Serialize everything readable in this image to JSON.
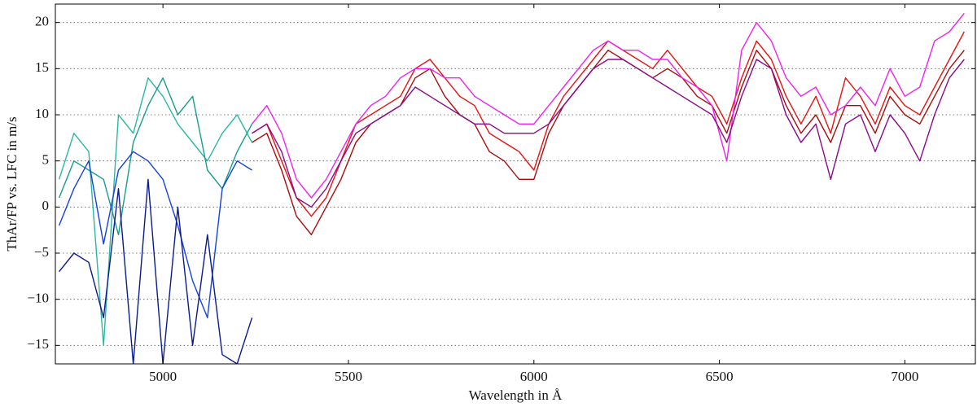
{
  "chart_data": {
    "type": "line",
    "xlabel": "Wavelength in Å",
    "ylabel": "ThAr/FP vs. LFC in m/s",
    "xlim": [
      4710,
      7190
    ],
    "ylim": [
      -17,
      22
    ],
    "xticks": [
      5000,
      5500,
      6000,
      6500,
      7000
    ],
    "yticks": [
      {
        "value": -15,
        "label": "−15"
      },
      {
        "value": -10,
        "label": "−10"
      },
      {
        "value": -5,
        "label": "−5"
      },
      0,
      5,
      10,
      15,
      20
    ],
    "grid": true,
    "x": [
      4720,
      4760,
      4800,
      4840,
      4880,
      4920,
      4960,
      5000,
      5040,
      5080,
      5120,
      5160,
      5200,
      5240,
      5280,
      5320,
      5360,
      5400,
      5440,
      5480,
      5520,
      5560,
      5600,
      5640,
      5680,
      5720,
      5760,
      5800,
      5840,
      5880,
      5920,
      5960,
      6000,
      6040,
      6080,
      6120,
      6160,
      6200,
      6240,
      6280,
      6320,
      6360,
      6400,
      6440,
      6480,
      6520,
      6560,
      6600,
      6640,
      6680,
      6720,
      6760,
      6800,
      6840,
      6880,
      6920,
      6960,
      7000,
      7040,
      7080,
      7120,
      7160
    ],
    "series": [
      {
        "color": "#2ab8a0",
        "values": [
          3,
          8,
          6,
          -15,
          10,
          8,
          14,
          12,
          9,
          7,
          5,
          8,
          10,
          7,
          null,
          null,
          null,
          null,
          null,
          null,
          null,
          null,
          null,
          null,
          null,
          null,
          null,
          null,
          null,
          null,
          null,
          null,
          null,
          null,
          null,
          null,
          null,
          null,
          null,
          null,
          null,
          null,
          null,
          null,
          null,
          null,
          null,
          null,
          null,
          null,
          null,
          null,
          null,
          null,
          null,
          null,
          null,
          null,
          null,
          null,
          null,
          null
        ]
      },
      {
        "color": "#159e8c",
        "values": [
          1,
          5,
          4,
          3,
          -3,
          7,
          11,
          14,
          10,
          12,
          4,
          2,
          6,
          9,
          null,
          null,
          null,
          null,
          null,
          null,
          null,
          null,
          null,
          null,
          null,
          null,
          null,
          null,
          null,
          null,
          null,
          null,
          null,
          null,
          null,
          null,
          null,
          null,
          null,
          null,
          null,
          null,
          null,
          null,
          null,
          null,
          null,
          null,
          null,
          null,
          null,
          null,
          null,
          null,
          null,
          null,
          null,
          null,
          null,
          null,
          null,
          null
        ]
      },
      {
        "color": "#1440e0",
        "values": [
          -2,
          2,
          5,
          -4,
          4,
          6,
          5,
          3,
          -2,
          -8,
          -12,
          2,
          5,
          4,
          null,
          null,
          null,
          null,
          null,
          null,
          null,
          null,
          null,
          null,
          null,
          null,
          null,
          null,
          null,
          null,
          null,
          null,
          null,
          null,
          null,
          null,
          null,
          null,
          null,
          null,
          null,
          null,
          null,
          null,
          null,
          null,
          null,
          null,
          null,
          null,
          null,
          null,
          null,
          null,
          null,
          null,
          null,
          null,
          null,
          null,
          null,
          null
        ]
      },
      {
        "color": "#0a1a90",
        "values": [
          -7,
          -5,
          -6,
          -12,
          2,
          -17,
          3,
          -17,
          0,
          -15,
          -3,
          -16,
          -17,
          -12,
          null,
          null,
          null,
          null,
          null,
          null,
          null,
          null,
          null,
          null,
          null,
          null,
          null,
          null,
          null,
          null,
          null,
          null,
          null,
          null,
          null,
          null,
          null,
          null,
          null,
          null,
          null,
          null,
          null,
          null,
          null,
          null,
          null,
          null,
          null,
          null,
          null,
          null,
          null,
          null,
          null,
          null,
          null,
          null,
          null,
          null,
          null,
          null
        ]
      },
      {
        "color": "#e81010",
        "values": [
          null,
          null,
          null,
          null,
          null,
          null,
          null,
          null,
          null,
          null,
          null,
          null,
          null,
          8,
          9,
          5,
          1,
          -1,
          1,
          5,
          9,
          10,
          11,
          12,
          15,
          16,
          14,
          12,
          11,
          8,
          7,
          6,
          4,
          9,
          12,
          14,
          16,
          18,
          17,
          16,
          15,
          17,
          15,
          13,
          12,
          9,
          14,
          18,
          16,
          12,
          9,
          12,
          8,
          14,
          12,
          9,
          13,
          11,
          10,
          13,
          16,
          19
        ]
      },
      {
        "color": "#a80c0c",
        "values": [
          null,
          null,
          null,
          null,
          null,
          null,
          null,
          null,
          null,
          null,
          null,
          null,
          null,
          7,
          8,
          4,
          -1,
          -3,
          0,
          3,
          7,
          9,
          10,
          11,
          14,
          15,
          12,
          10,
          9,
          6,
          5,
          3,
          3,
          8,
          11,
          13,
          15,
          17,
          16,
          15,
          14,
          15,
          14,
          12,
          11,
          8,
          13,
          17,
          15,
          11,
          8,
          10,
          7,
          11,
          11,
          8,
          12,
          10,
          9,
          12,
          15,
          17
        ]
      },
      {
        "color": "#f020f0",
        "values": [
          null,
          null,
          null,
          null,
          null,
          null,
          null,
          null,
          null,
          null,
          null,
          null,
          null,
          9,
          11,
          8,
          3,
          1,
          3,
          6,
          9,
          11,
          12,
          14,
          15,
          15,
          14,
          14,
          12,
          11,
          10,
          9,
          9,
          11,
          13,
          15,
          17,
          18,
          17,
          17,
          16,
          16,
          14,
          13,
          11,
          5,
          17,
          20,
          18,
          14,
          12,
          13,
          10,
          11,
          13,
          11,
          15,
          12,
          13,
          18,
          19,
          21
        ]
      },
      {
        "color": "#8a0a8a",
        "values": [
          null,
          null,
          null,
          null,
          null,
          null,
          null,
          null,
          null,
          null,
          null,
          null,
          null,
          8,
          9,
          6,
          1,
          0,
          2,
          5,
          8,
          9,
          10,
          11,
          13,
          12,
          11,
          10,
          9,
          9,
          8,
          8,
          8,
          9,
          11,
          13,
          15,
          16,
          16,
          15,
          14,
          13,
          12,
          11,
          10,
          7,
          12,
          16,
          15,
          10,
          7,
          9,
          3,
          9,
          10,
          6,
          10,
          8,
          5,
          10,
          14,
          16
        ]
      }
    ]
  }
}
